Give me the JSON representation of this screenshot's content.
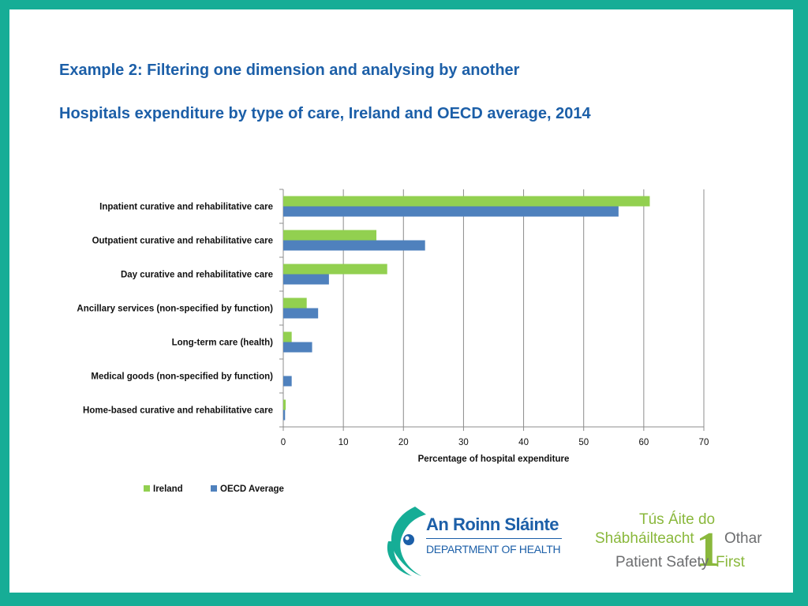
{
  "slide": {
    "heading": "Example 2: Filtering one dimension and analysing by another",
    "subheading": "Hospitals expenditure by type of care, Ireland and OECD average, 2014"
  },
  "chart_data": {
    "type": "bar",
    "orientation": "horizontal",
    "title": "Hospitals expenditure by type of care, Ireland and OECD average, 2014",
    "categories": [
      "Inpatient curative and rehabilitative care",
      "Outpatient curative and rehabilitative care",
      "Day curative and rehabilitative care",
      "Ancillary services (non-specified by function)",
      "Long-term care (health)",
      "Medical goods (non-specified by function)",
      "Home-based curative and rehabilitative care"
    ],
    "series": [
      {
        "name": "Ireland",
        "color": "#92d050",
        "values": [
          61,
          15.5,
          17.3,
          3.9,
          1.4,
          0,
          0.4
        ]
      },
      {
        "name": "OECD Average",
        "color": "#4f81bd",
        "values": [
          55.8,
          23.6,
          7.6,
          5.8,
          4.8,
          1.4,
          0.3
        ]
      }
    ],
    "xlabel": "Percentage of hospital expenditure",
    "ylabel": "",
    "xlim": [
      0,
      70
    ],
    "xticks": [
      "0",
      "10",
      "20",
      "30",
      "40",
      "50",
      "60",
      "70"
    ],
    "grid": "vertical",
    "legend": "bottom-left"
  },
  "logos": {
    "department": {
      "name": "An Roinn Sláinte",
      "subtitle": "DEPARTMENT OF HEALTH"
    },
    "patient_safety": {
      "line1": "Tús Áite do",
      "line2": "Shábháilteacht",
      "line2b": "Othar",
      "line3": "Patient Safety",
      "line3b": "First",
      "numeral": "1"
    }
  }
}
